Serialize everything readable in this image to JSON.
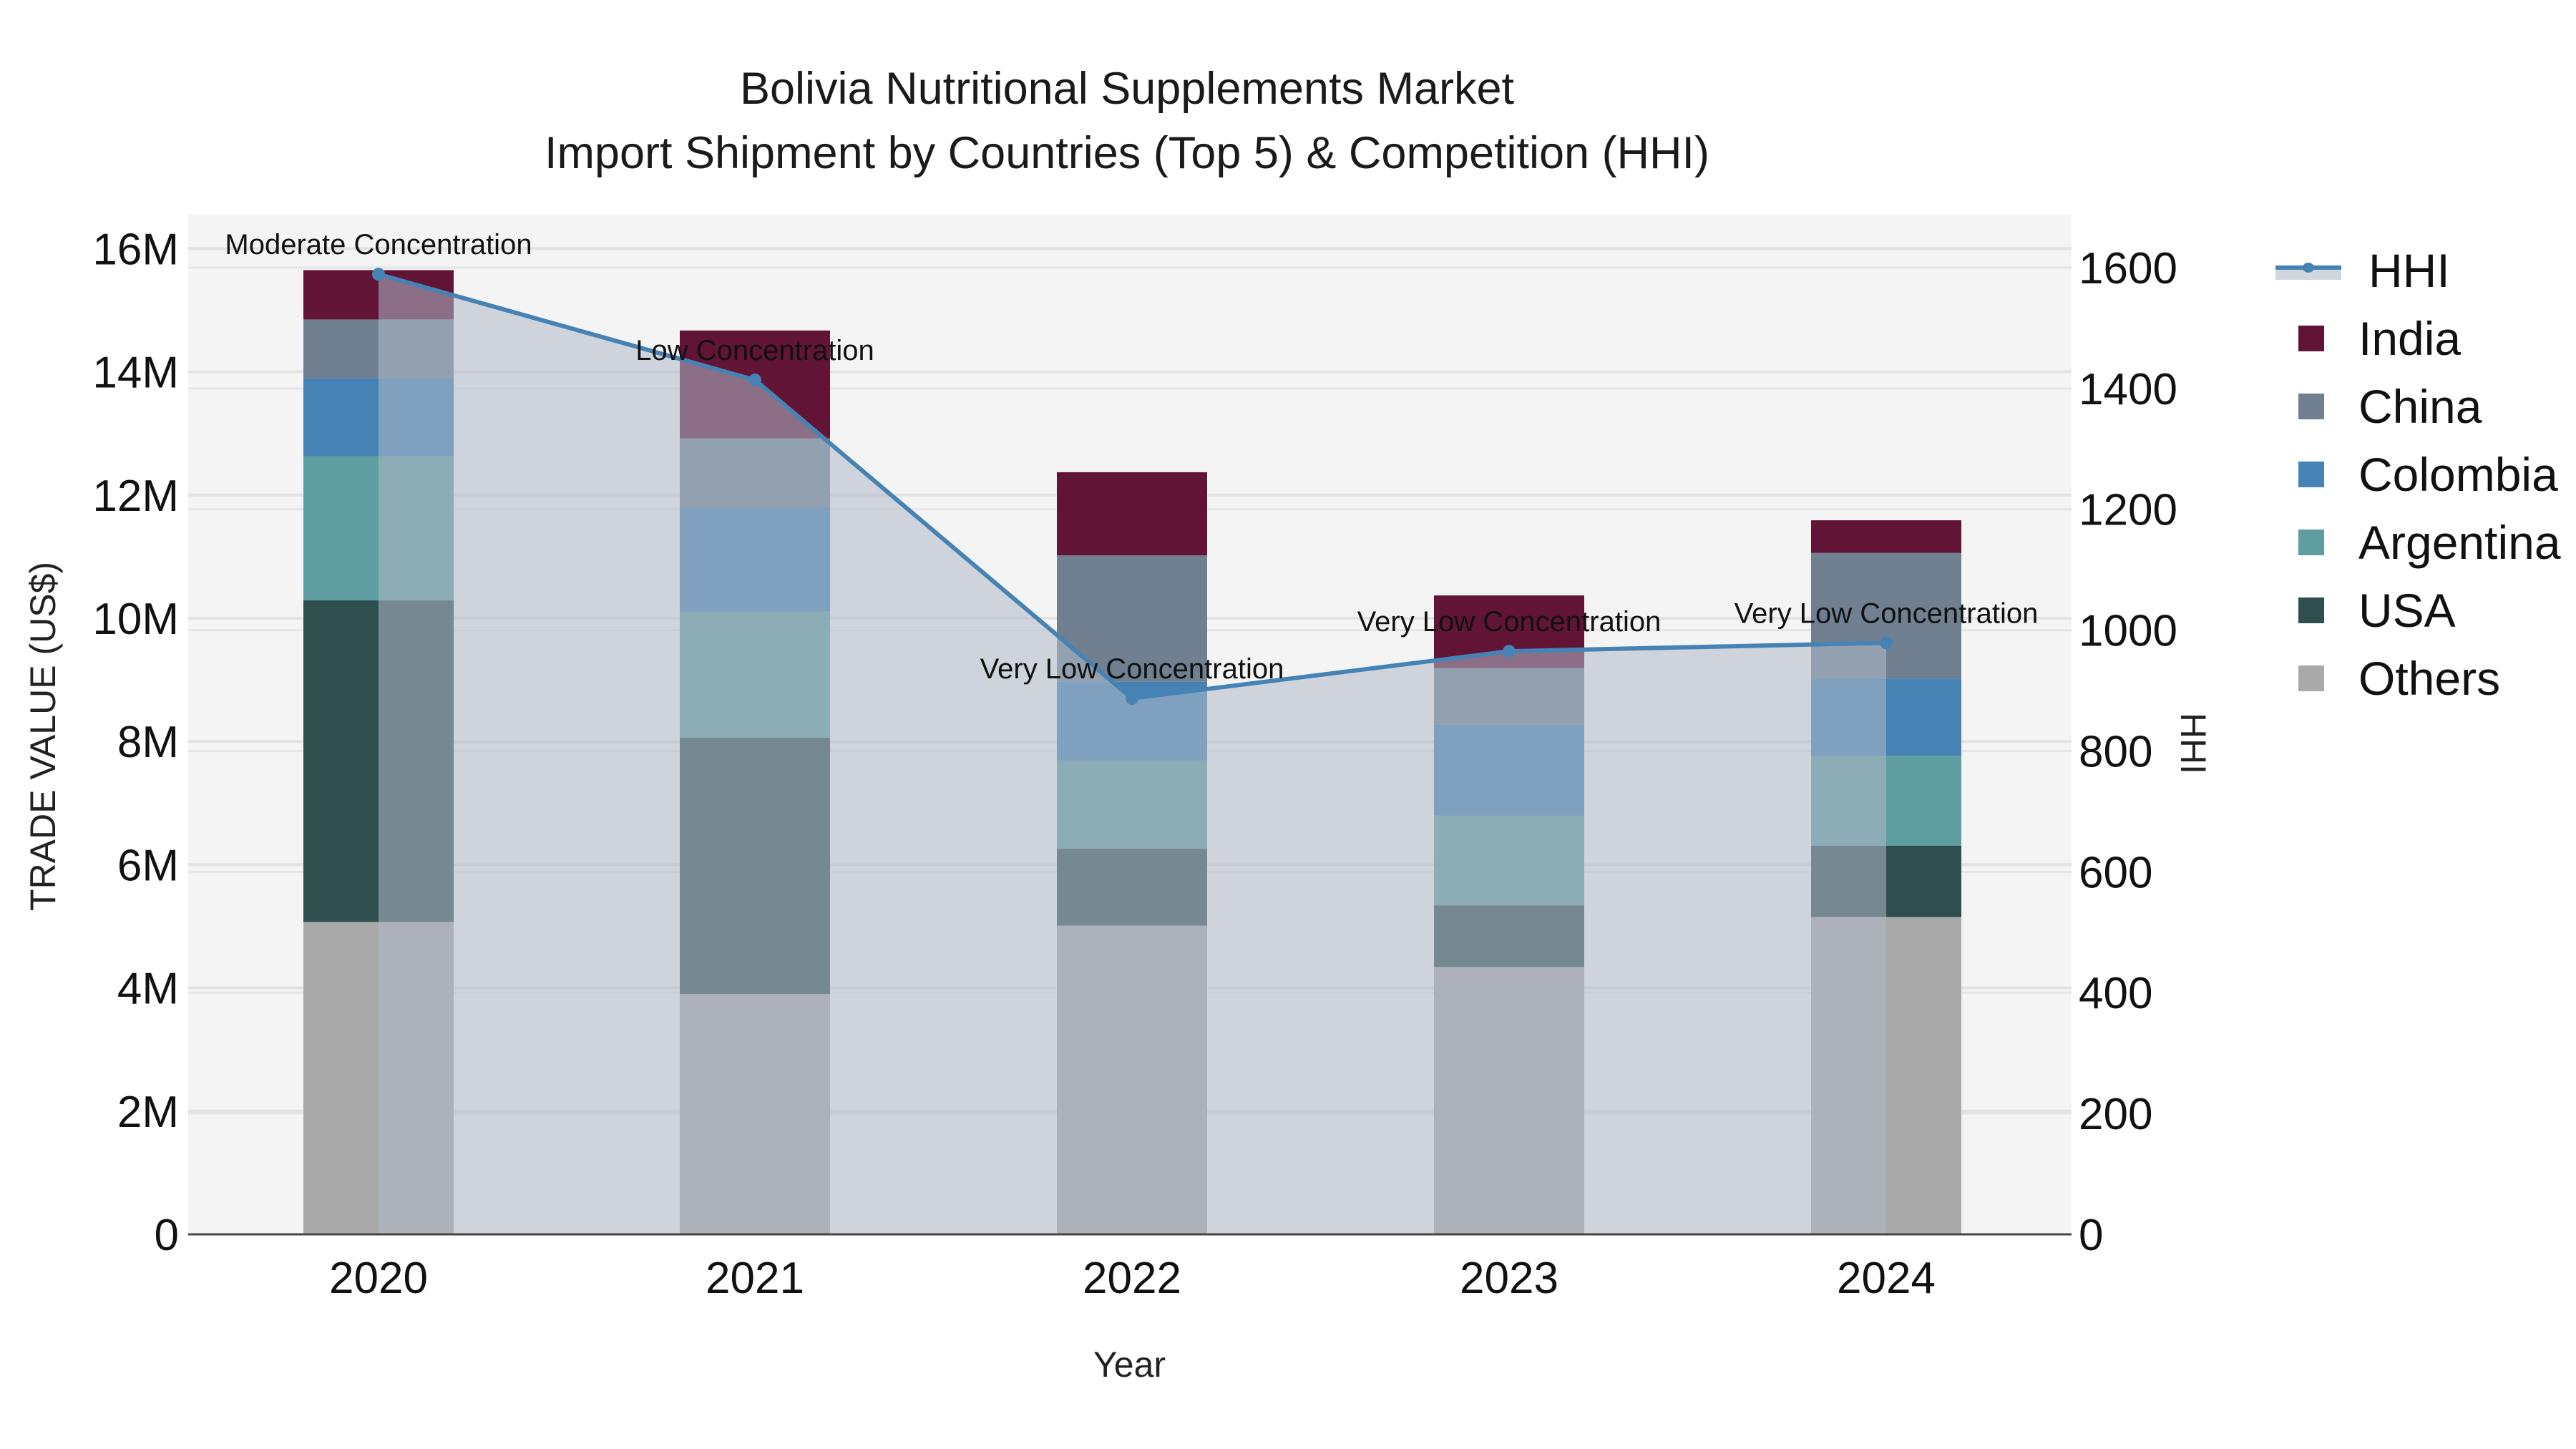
{
  "title": {
    "line1": "Bolivia Nutritional Supplements Market",
    "line2": "Import Shipment by Countries (Top 5) & Competition (HHI)"
  },
  "axes": {
    "x_title": "Year",
    "y_left_title": "TRADE VALUE (US$)",
    "y_right_title": "HHI",
    "y_left_ticks": [
      "0",
      "2M",
      "4M",
      "6M",
      "8M",
      "10M",
      "12M",
      "14M",
      "16M"
    ],
    "y_right_ticks": [
      "0",
      "200",
      "400",
      "600",
      "800",
      "1000",
      "1200",
      "1400",
      "1600"
    ]
  },
  "legend": [
    {
      "name": "HHI",
      "type": "line",
      "color": "#4682b4"
    },
    {
      "name": "India",
      "type": "bar",
      "color": "#611436"
    },
    {
      "name": "China",
      "type": "bar",
      "color": "#708090"
    },
    {
      "name": "Colombia",
      "type": "bar",
      "color": "#4682b4"
    },
    {
      "name": "Argentina",
      "type": "bar",
      "color": "#5f9ea0"
    },
    {
      "name": "USA",
      "type": "bar",
      "color": "#2f4f4f"
    },
    {
      "name": "Others",
      "type": "bar",
      "color": "#a9a9a9"
    }
  ],
  "chart_data": {
    "type": "bar",
    "stacked": true,
    "title": "Bolivia Nutritional Supplements Market — Import Shipment by Countries (Top 5) & Competition (HHI)",
    "xlabel": "Year",
    "ylabel": "TRADE VALUE (US$)",
    "y2label": "HHI",
    "ylim": [
      0,
      16500000
    ],
    "y2lim": [
      0,
      1690
    ],
    "grid": true,
    "legend_position": "right",
    "categories": [
      "2020",
      "2021",
      "2022",
      "2023",
      "2024"
    ],
    "series": [
      {
        "name": "Others",
        "color": "#a9a9a9",
        "values": [
          5070000,
          3900000,
          5010000,
          4340000,
          5150000
        ]
      },
      {
        "name": "USA",
        "color": "#2f4f4f",
        "values": [
          5220000,
          4160000,
          1250000,
          1000000,
          1160000
        ]
      },
      {
        "name": "Argentina",
        "color": "#5f9ea0",
        "values": [
          2340000,
          2050000,
          1430000,
          1460000,
          1460000
        ]
      },
      {
        "name": "Colombia",
        "color": "#4682b4",
        "values": [
          1270000,
          1690000,
          1280000,
          1470000,
          1250000
        ]
      },
      {
        "name": "China",
        "color": "#708090",
        "values": [
          950000,
          1120000,
          2050000,
          920000,
          2040000
        ]
      },
      {
        "name": "India",
        "color": "#611436",
        "values": [
          800000,
          1750000,
          1350000,
          1180000,
          530000
        ]
      }
    ],
    "line_series": {
      "name": "HHI",
      "axis": "right",
      "color": "#4682b4",
      "fill": "tozeroy",
      "values": [
        1589,
        1414,
        887,
        965,
        979
      ],
      "annotations": [
        "Moderate Concentration",
        "Low Concentration",
        "Very Low Concentration",
        "Very Low Concentration",
        "Very Low Concentration"
      ]
    }
  }
}
